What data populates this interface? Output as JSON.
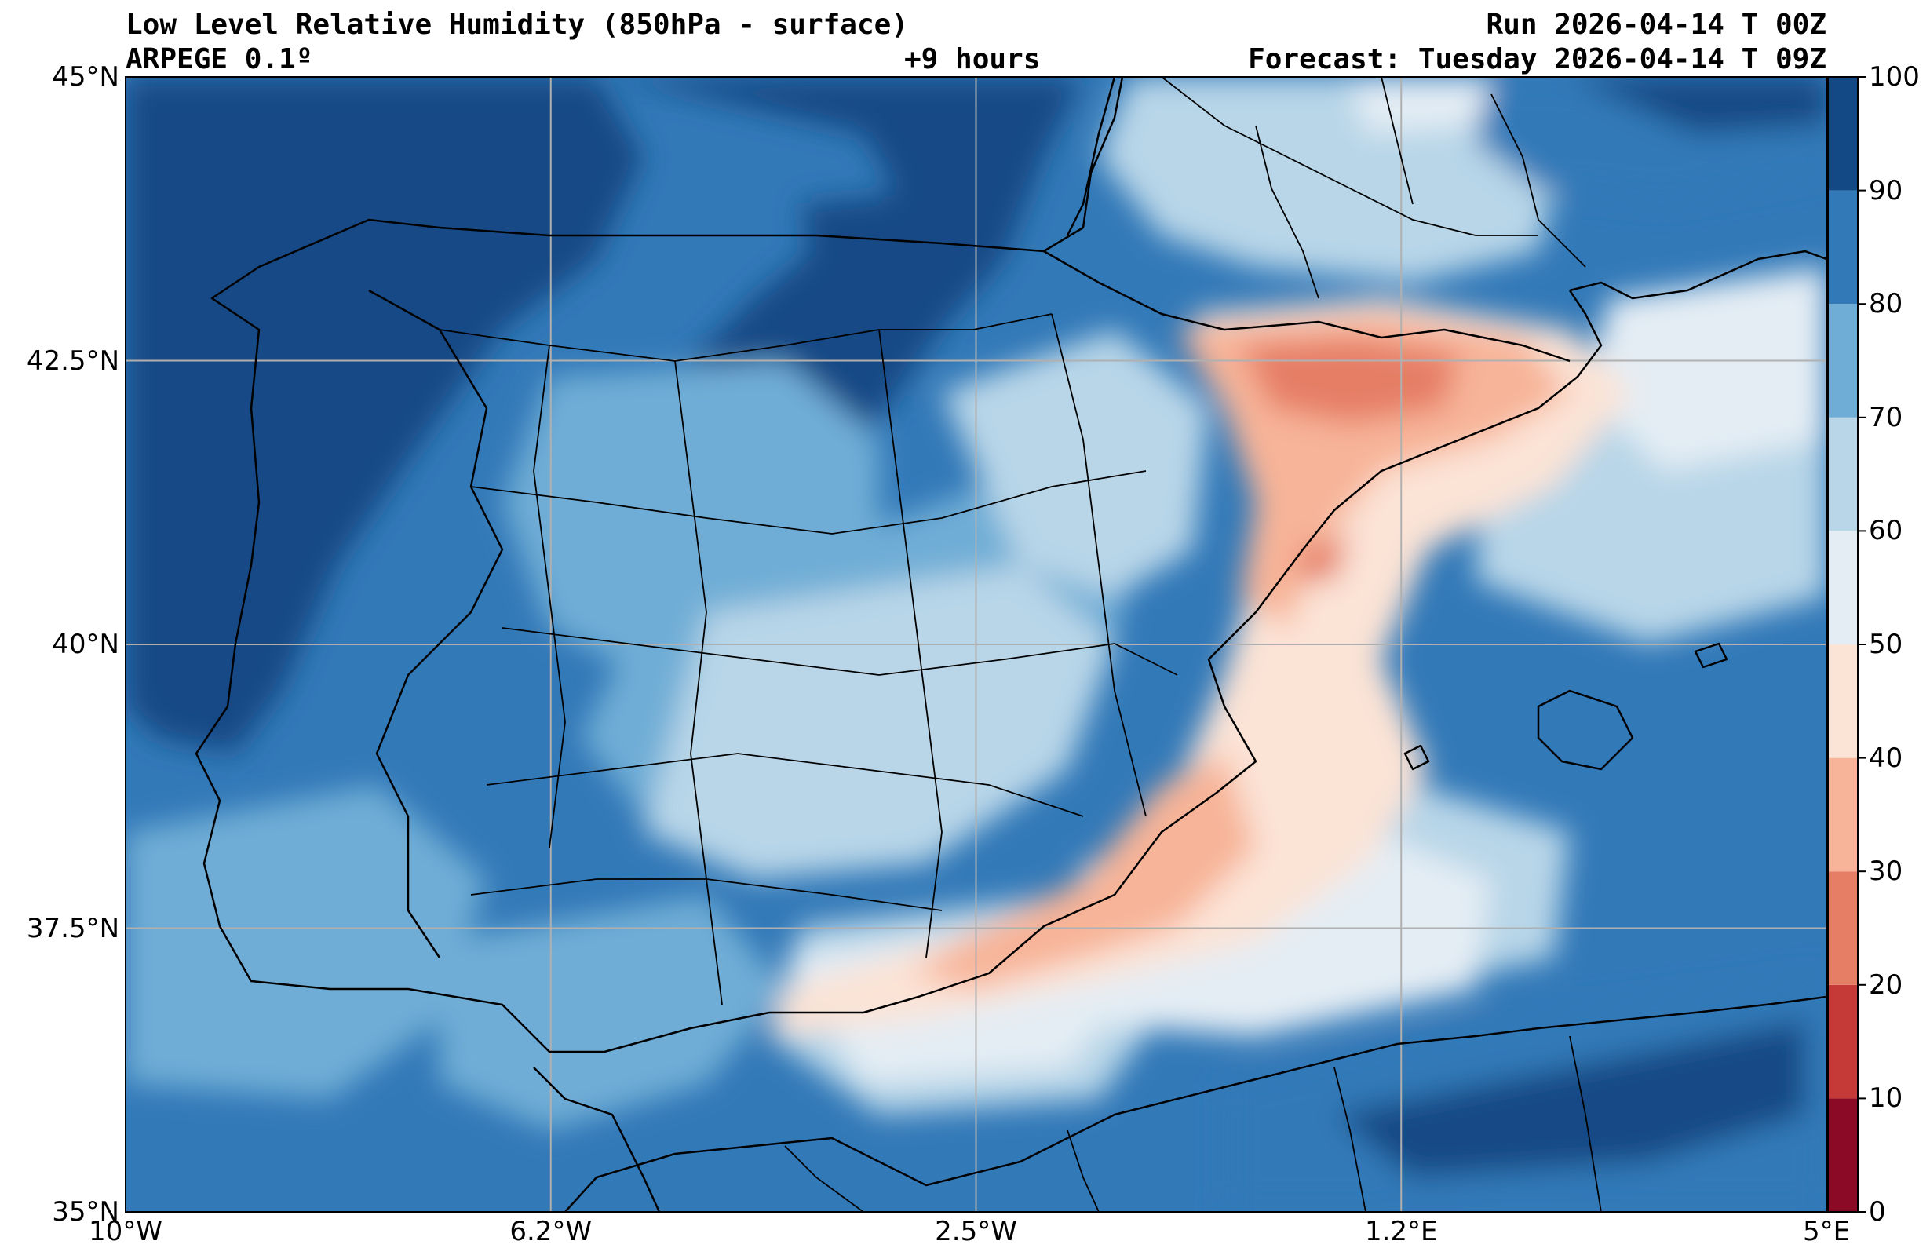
{
  "header": {
    "title_left": "Low Level Relative Humidity (850hPa - surface)",
    "subtitle_left": "ARPEGE 0.1º",
    "lead_time": "+9 hours",
    "run_label": "Run 2026-04-14 T 00Z",
    "forecast_label": "Forecast: Tuesday 2026-04-14 T 09Z"
  },
  "map": {
    "lon_range": [
      -10,
      5
    ],
    "lat_range": [
      35,
      45
    ],
    "lon_ticks": [
      {
        "value": -10,
        "label": "10°W"
      },
      {
        "value": -6.25,
        "label": "6.2°W"
      },
      {
        "value": -2.5,
        "label": "2.5°W"
      },
      {
        "value": 1.25,
        "label": "1.2°E"
      },
      {
        "value": 5,
        "label": "5°E"
      }
    ],
    "lat_ticks": [
      {
        "value": 45,
        "label": "45°N"
      },
      {
        "value": 42.5,
        "label": "42.5°N"
      },
      {
        "value": 40,
        "label": "40°N"
      },
      {
        "value": 37.5,
        "label": "37.5°N"
      },
      {
        "value": 35,
        "label": "35°N"
      }
    ],
    "grid": true
  },
  "colorbar": {
    "levels": [
      {
        "min": 0,
        "max": 10,
        "color": "#8b0a26"
      },
      {
        "min": 10,
        "max": 20,
        "color": "#c53a36"
      },
      {
        "min": 20,
        "max": 30,
        "color": "#e67e66"
      },
      {
        "min": 30,
        "max": 40,
        "color": "#f7b498"
      },
      {
        "min": 40,
        "max": 50,
        "color": "#fbe3d6"
      },
      {
        "min": 50,
        "max": 60,
        "color": "#e4edf4"
      },
      {
        "min": 60,
        "max": 70,
        "color": "#b8d6e8"
      },
      {
        "min": 70,
        "max": 80,
        "color": "#6fadd6"
      },
      {
        "min": 80,
        "max": 90,
        "color": "#3279b8"
      },
      {
        "min": 90,
        "max": 100,
        "color": "#134a85"
      }
    ],
    "tick_labels": [
      "0",
      "10",
      "20",
      "30",
      "40",
      "50",
      "60",
      "70",
      "80",
      "90",
      "100"
    ]
  }
}
